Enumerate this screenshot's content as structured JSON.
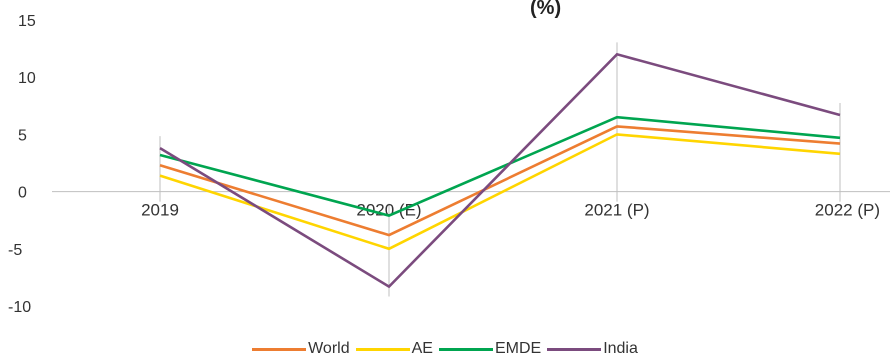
{
  "chart_data": {
    "type": "line",
    "title_fragment": "(%)",
    "categories": [
      "2019",
      "2020 (E)",
      "2021 (P)",
      "2022 (P)"
    ],
    "ylim": [
      -10,
      15
    ],
    "yticks": [
      15,
      10,
      5,
      0,
      -5,
      -10
    ],
    "grid": false,
    "legend_position": "bottom",
    "series": [
      {
        "name": "World",
        "color": "#ED7D31",
        "values": [
          2.3,
          -3.8,
          5.7,
          4.2
        ]
      },
      {
        "name": "AE",
        "color": "#FFD500",
        "values": [
          1.4,
          -5.0,
          5.0,
          3.3
        ]
      },
      {
        "name": "EMDE",
        "color": "#00A550",
        "values": [
          3.2,
          -2.1,
          6.5,
          4.7
        ]
      },
      {
        "name": "India",
        "color": "#7B4B7E",
        "values": [
          3.8,
          -8.3,
          12.0,
          6.7
        ]
      }
    ]
  }
}
